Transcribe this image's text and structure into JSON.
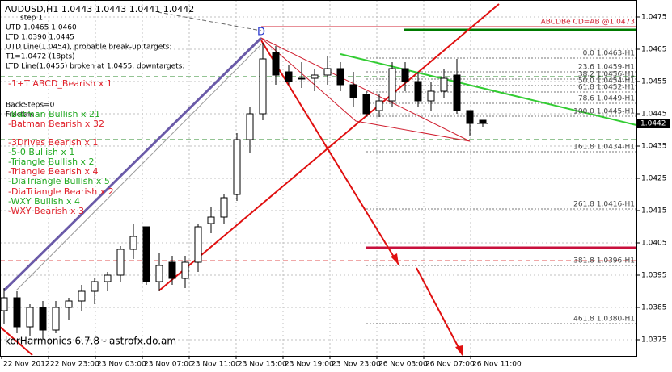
{
  "chart_data": {
    "type": "candlestick",
    "title": "AUDUSD,H1  1.0443 1.0443 1.0441 1.0442",
    "info_lines": [
      "step 1",
      "UTD 1.0465 1.0460",
      "LTD 1.0390 1.0445",
      "UTD Line(1.0454), probable break-up targets:",
      "T1=1.0472 (18pts)",
      "LTD Line(1.0455) broken at 1.0455, downtargets:",
      "BackSteps=0",
      "Fractals"
    ],
    "patterns": [
      {
        "text": "-1+T ABCD_Bearish x 1",
        "color": "#e0202a"
      },
      {
        "text": "-Batman Bullish x 21",
        "color": "#22aa22"
      },
      {
        "text": "-Batman Bearish x 32",
        "color": "#e0202a"
      },
      {
        "text": "-3Drives Bearish x 1",
        "color": "#e0202a"
      },
      {
        "text": "-5-0 Bullish x 1",
        "color": "#22aa22"
      },
      {
        "text": "-Triangle Bullish x 2",
        "color": "#22aa22"
      },
      {
        "text": "-Triangle Bearish x 4",
        "color": "#e0202a"
      },
      {
        "text": "-DiaTriangle Bullish x 5",
        "color": "#22aa22"
      },
      {
        "text": "-DiaTriangle Bearish x 2",
        "color": "#e0202a"
      },
      {
        "text": "-WXY Bullish x 4",
        "color": "#22aa22"
      },
      {
        "text": "-WXY Bearish x 3",
        "color": "#e0202a"
      }
    ],
    "watermark": "korHarmonics 6.7.8 - astrofx.do.am",
    "target_label": "ABCDBe CD=AB  @1.0473",
    "fib_labels": [
      "0.0 1.0463-H1",
      "23.6 1.0459-H1",
      "38.2 1.0456-H1",
      "50.0 1.0454-H1",
      "61.8 1.0452-H1",
      "78.6 1.0449-H1",
      "100.0 1.0445-H1",
      "161.8 1.0434-H1",
      "261.8 1.0416-H1",
      "381.8 1.0396-H1",
      "461.8 1.0380-H1"
    ],
    "pivot_label": "D",
    "time_labels": [
      "22 Nov 2012",
      "22 Nov 23:00",
      "23 Nov 03:00",
      "23 Nov 07:00",
      "23 Nov 11:00",
      "23 Nov 15:00",
      "23 Nov 19:00",
      "23 Nov 23:00",
      "26 Nov 03:00",
      "26 Nov 07:00",
      "26 Nov 11:00"
    ],
    "open": [
      1.0384,
      1.0388,
      1.0379,
      1.0385,
      1.0378,
      1.0385,
      1.0387,
      1.039,
      1.0393,
      1.0395,
      1.0403,
      1.041,
      1.0393,
      1.0399,
      1.0394,
      1.0399,
      1.0411,
      1.0413,
      1.042,
      1.0437,
      1.0445,
      1.0464,
      1.0458,
      1.0456,
      1.0456,
      1.0457,
      1.0459,
      1.0454,
      1.0451,
      1.0446,
      1.0449,
      1.0459,
      1.0455,
      1.0449,
      1.0452,
      1.0457,
      1.0446,
      1.0443
    ],
    "high": [
      1.0391,
      1.039,
      1.0386,
      1.0387,
      1.0387,
      1.0388,
      1.0392,
      1.0394,
      1.0396,
      1.0404,
      1.0411,
      1.041,
      1.0402,
      1.0401,
      1.0401,
      1.0411,
      1.0416,
      1.042,
      1.0439,
      1.0447,
      1.0467,
      1.0466,
      1.046,
      1.0461,
      1.0459,
      1.0463,
      1.0461,
      1.0458,
      1.0452,
      1.0451,
      1.0461,
      1.0461,
      1.0458,
      1.0455,
      1.0459,
      1.0462,
      1.0446,
      1.0443
    ],
    "low": [
      1.038,
      1.0377,
      1.0376,
      1.0375,
      1.0377,
      1.0381,
      1.0384,
      1.0386,
      1.039,
      1.0393,
      1.04,
      1.0392,
      1.039,
      1.0392,
      1.0391,
      1.0396,
      1.0408,
      1.0411,
      1.0418,
      1.0433,
      1.0443,
      1.0454,
      1.0454,
      1.0453,
      1.0452,
      1.0454,
      1.0452,
      1.0447,
      1.0444,
      1.0444,
      1.0447,
      1.0452,
      1.0447,
      1.0446,
      1.045,
      1.0445,
      1.0438,
      1.0441
    ],
    "close": [
      1.0388,
      1.0379,
      1.0385,
      1.0378,
      1.0385,
      1.0387,
      1.039,
      1.0393,
      1.0395,
      1.0403,
      1.0407,
      1.0393,
      1.0398,
      1.0394,
      1.0399,
      1.041,
      1.0413,
      1.0419,
      1.0437,
      1.0445,
      1.0462,
      1.0457,
      1.0455,
      1.0456,
      1.0457,
      1.0459,
      1.0454,
      1.045,
      1.0445,
      1.0449,
      1.0459,
      1.0455,
      1.0449,
      1.0452,
      1.0456,
      1.0446,
      1.0442,
      1.0442
    ],
    "current_price": 1.0442,
    "ylim": [
      1.037,
      1.048
    ],
    "yticks": [
      1.0475,
      1.0465,
      1.0455,
      1.0445,
      1.0435,
      1.0425,
      1.0415,
      1.0405,
      1.0395,
      1.0385,
      1.0375
    ],
    "grid": true
  }
}
